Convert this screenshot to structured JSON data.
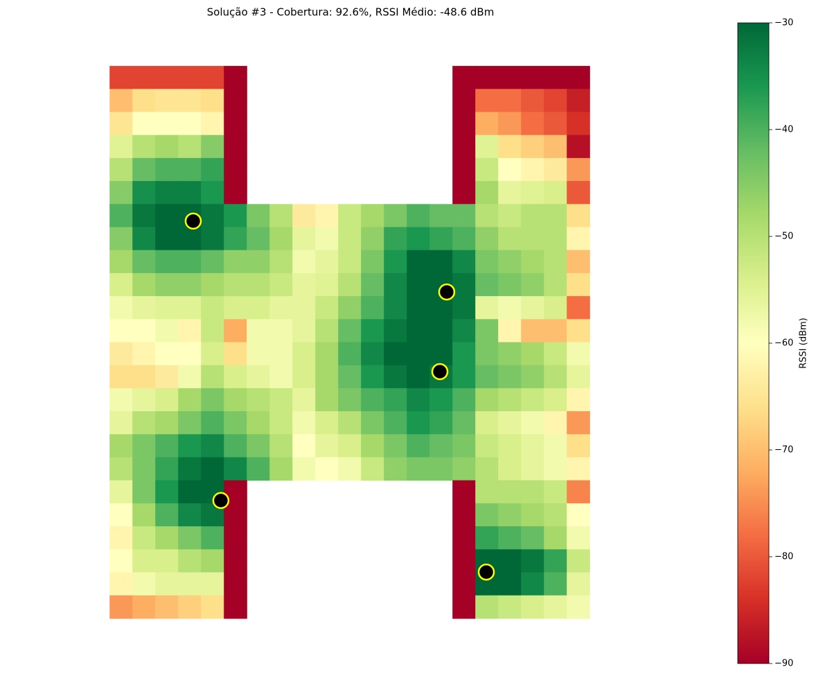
{
  "chart_data": {
    "type": "heatmap",
    "title": "Solução #3 - Cobertura: 92.6%, RSSI Médio: -48.6 dBm",
    "colormap": [
      "#a50026",
      "#d73027",
      "#f46d43",
      "#fdae61",
      "#fee08b",
      "#ffffbf",
      "#d9ef8b",
      "#a6d96a",
      "#66bd63",
      "#1a9850",
      "#006837"
    ],
    "colorbar": {
      "label": "RSSI (dBm)",
      "lim": [
        -90,
        -30
      ],
      "ticks": [
        {
          "value": -90,
          "label": "−90"
        },
        {
          "value": -80,
          "label": "−80"
        },
        {
          "value": -70,
          "label": "−70"
        },
        {
          "value": -60,
          "label": "−60"
        },
        {
          "value": -50,
          "label": "−50"
        },
        {
          "value": -40,
          "label": "−40"
        },
        {
          "value": -30,
          "label": "−30"
        }
      ]
    },
    "z": [
      [
        -82,
        -82,
        -82,
        -82,
        -82,
        -90,
        null,
        null,
        null,
        null,
        null,
        null,
        null,
        null,
        null,
        -90,
        -90,
        -90,
        -90,
        -90,
        -90
      ],
      [
        -70,
        -66,
        -65,
        -65,
        -66,
        -90,
        null,
        null,
        null,
        null,
        null,
        null,
        null,
        null,
        null,
        -90,
        -78,
        -78,
        -80,
        -82,
        -86
      ],
      [
        -65,
        -60,
        -60,
        -60,
        -62,
        -90,
        null,
        null,
        null,
        null,
        null,
        null,
        null,
        null,
        null,
        -90,
        -72,
        -74,
        -78,
        -80,
        -84
      ],
      [
        -55,
        -50,
        -48,
        -50,
        -45,
        -90,
        null,
        null,
        null,
        null,
        null,
        null,
        null,
        null,
        null,
        -90,
        -55,
        -66,
        -68,
        -70,
        -88
      ],
      [
        -50,
        -42,
        -40,
        -40,
        -38,
        -90,
        null,
        null,
        null,
        null,
        null,
        null,
        null,
        null,
        null,
        -90,
        -52,
        -60,
        -62,
        -64,
        -74
      ],
      [
        -45,
        -35,
        -33,
        -33,
        -36,
        -90,
        null,
        null,
        null,
        null,
        null,
        null,
        null,
        null,
        null,
        -90,
        -48,
        -56,
        -55,
        -54,
        -80
      ],
      [
        -40,
        -32,
        -30,
        -30,
        -32,
        -36,
        -44,
        -50,
        -64,
        -62,
        -52,
        -48,
        -44,
        -40,
        -42,
        -42,
        -50,
        -52,
        -50,
        -50,
        -66
      ],
      [
        -45,
        -34,
        -30,
        -30,
        -32,
        -38,
        -42,
        -48,
        -56,
        -58,
        -52,
        -46,
        -38,
        -36,
        -38,
        -40,
        -46,
        -50,
        -50,
        -50,
        -62
      ],
      [
        -48,
        -42,
        -40,
        -40,
        -42,
        -46,
        -46,
        -50,
        -58,
        -56,
        -52,
        -44,
        -36,
        -30,
        -30,
        -34,
        -44,
        -46,
        -48,
        -50,
        -70
      ],
      [
        -54,
        -48,
        -46,
        -46,
        -48,
        -50,
        -50,
        -52,
        -56,
        -55,
        -50,
        -42,
        -34,
        -30,
        -30,
        -32,
        -42,
        -44,
        -46,
        -50,
        -66
      ],
      [
        -58,
        -56,
        -55,
        -55,
        -52,
        -54,
        -54,
        -56,
        -56,
        -52,
        -46,
        -40,
        -34,
        -30,
        -30,
        -32,
        -56,
        -58,
        -56,
        -54,
        -78
      ],
      [
        -60,
        -60,
        -58,
        -62,
        -52,
        -72,
        -58,
        -58,
        -56,
        -50,
        -42,
        -36,
        -32,
        -30,
        -30,
        -34,
        -44,
        -62,
        -70,
        -70,
        -66
      ],
      [
        -64,
        -62,
        -60,
        -60,
        -54,
        -66,
        -58,
        -58,
        -54,
        -48,
        -40,
        -34,
        -30,
        -30,
        -30,
        -36,
        -44,
        -46,
        -48,
        -52,
        -58
      ],
      [
        -66,
        -66,
        -64,
        -58,
        -50,
        -54,
        -56,
        -58,
        -54,
        -48,
        -42,
        -36,
        -32,
        -30,
        -32,
        -36,
        -42,
        -44,
        -46,
        -50,
        -56
      ],
      [
        -58,
        -56,
        -54,
        -48,
        -44,
        -48,
        -50,
        -52,
        -56,
        -48,
        -44,
        -40,
        -38,
        -34,
        -36,
        -40,
        -48,
        -50,
        -52,
        -54,
        -62
      ],
      [
        -56,
        -50,
        -48,
        -44,
        -40,
        -44,
        -48,
        -52,
        -58,
        -54,
        -50,
        -44,
        -40,
        -36,
        -38,
        -42,
        -54,
        -56,
        -58,
        -62,
        -74
      ],
      [
        -48,
        -44,
        -40,
        -36,
        -34,
        -40,
        -44,
        -50,
        -60,
        -56,
        -54,
        -48,
        -44,
        -40,
        -42,
        -44,
        -52,
        -54,
        -56,
        -58,
        -66
      ],
      [
        -50,
        -44,
        -38,
        -32,
        -30,
        -34,
        -40,
        -48,
        -58,
        -60,
        -58,
        -52,
        -46,
        -44,
        -44,
        -46,
        -50,
        -54,
        -56,
        -58,
        -62
      ],
      [
        -56,
        -44,
        -36,
        -30,
        -30,
        -90,
        null,
        null,
        null,
        null,
        null,
        null,
        null,
        null,
        null,
        -90,
        -50,
        -50,
        -50,
        -52,
        -76
      ],
      [
        -60,
        -48,
        -40,
        -34,
        -32,
        -90,
        null,
        null,
        null,
        null,
        null,
        null,
        null,
        null,
        null,
        -90,
        -44,
        -46,
        -48,
        -50,
        -60
      ],
      [
        -62,
        -52,
        -48,
        -44,
        -40,
        -90,
        null,
        null,
        null,
        null,
        null,
        null,
        null,
        null,
        null,
        -90,
        -38,
        -40,
        -42,
        -48,
        -58
      ],
      [
        -60,
        -54,
        -54,
        -50,
        -48,
        -90,
        null,
        null,
        null,
        null,
        null,
        null,
        null,
        null,
        null,
        -90,
        -30,
        -30,
        -32,
        -38,
        -52
      ],
      [
        -62,
        -58,
        -56,
        -56,
        -56,
        -90,
        null,
        null,
        null,
        null,
        null,
        null,
        null,
        null,
        null,
        -90,
        -30,
        -30,
        -34,
        -40,
        -56
      ],
      [
        -74,
        -72,
        -70,
        -68,
        -66,
        -90,
        null,
        null,
        null,
        null,
        null,
        null,
        null,
        null,
        null,
        -90,
        -50,
        -52,
        -54,
        -56,
        -58
      ]
    ],
    "access_points": {
      "x": [
        3.15,
        14.24,
        13.94,
        4.36,
        15.97
      ],
      "y": [
        6.23,
        9.31,
        12.77,
        18.37,
        21.48
      ],
      "color": "#000000",
      "edge_color": "#ffff00"
    }
  }
}
